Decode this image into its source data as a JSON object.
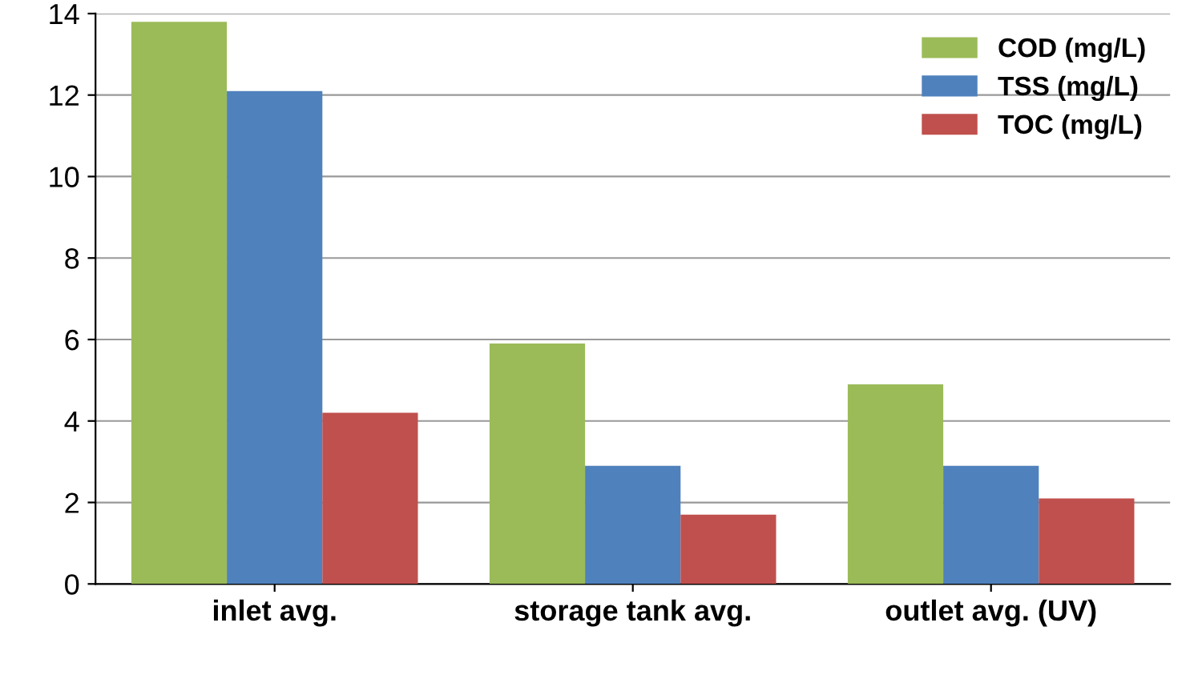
{
  "chart_data": {
    "type": "bar",
    "categories": [
      "inlet avg.",
      "storage tank avg.",
      "outlet avg. (UV)"
    ],
    "series": [
      {
        "name": "COD (mg/L)",
        "color": "#9bbb59",
        "values": [
          13.8,
          5.9,
          4.9
        ]
      },
      {
        "name": "TSS (mg/L)",
        "color": "#4f81bd",
        "values": [
          12.1,
          2.9,
          2.9
        ]
      },
      {
        "name": "TOC (mg/L)",
        "color": "#c0504d",
        "values": [
          4.2,
          1.7,
          2.1
        ]
      }
    ],
    "ylim": [
      0,
      14
    ],
    "yticks": [
      0,
      2,
      4,
      6,
      8,
      10,
      12,
      14
    ],
    "grid": "y",
    "legend": "top right"
  }
}
